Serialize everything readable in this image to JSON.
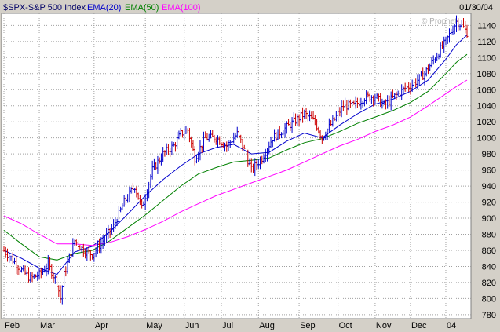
{
  "colors": {
    "background": "#d4d0c8",
    "plot": "#ffffff",
    "grid": "#a0a0a0",
    "up_bar": "#0000cc",
    "down_bar": "#cc0000",
    "ema20": "#0000cc",
    "ema50": "#008000",
    "ema100": "#ff00ff"
  },
  "header": {
    "symbol": "$SPX-S&P 500 Index",
    "date": "01/30/04",
    "watermark": "© Prophet"
  },
  "chart_data": {
    "type": "line",
    "title": "$SPX-S&P 500 Index",
    "ylim": [
      775,
      1155
    ],
    "grid": true,
    "y_ticks": [
      780,
      800,
      820,
      840,
      860,
      880,
      900,
      920,
      940,
      960,
      980,
      1000,
      1020,
      1040,
      1060,
      1080,
      1100,
      1120,
      1140
    ],
    "x_ticks": [
      "Feb",
      "Mar",
      "Apr",
      "May",
      "Jun",
      "Jul",
      "Aug",
      "Sep",
      "Oct",
      "Nov",
      "Dec",
      "04"
    ],
    "x_tick_day": [
      0,
      20,
      51,
      80,
      102,
      123,
      144,
      167,
      189,
      210,
      230,
      250
    ],
    "series": [
      {
        "name": "EMA(20)",
        "color": "#0000cc",
        "x": [
          0,
          10,
          20,
          30,
          40,
          50,
          60,
          70,
          80,
          90,
          100,
          110,
          120,
          130,
          140,
          150,
          160,
          170,
          180,
          190,
          200,
          210,
          220,
          230,
          240,
          250,
          256,
          262
        ],
        "values": [
          860,
          850,
          838,
          830,
          858,
          865,
          883,
          905,
          928,
          948,
          965,
          980,
          988,
          992,
          980,
          982,
          996,
          1006,
          1000,
          1016,
          1030,
          1042,
          1048,
          1058,
          1072,
          1098,
          1116,
          1128
        ]
      },
      {
        "name": "EMA(50)",
        "color": "#008000",
        "x": [
          0,
          10,
          20,
          30,
          40,
          50,
          60,
          70,
          80,
          90,
          100,
          110,
          120,
          130,
          140,
          150,
          160,
          170,
          180,
          190,
          200,
          210,
          220,
          230,
          240,
          250,
          256,
          262
        ],
        "values": [
          885,
          868,
          852,
          848,
          856,
          860,
          872,
          888,
          904,
          922,
          940,
          955,
          963,
          970,
          972,
          975,
          985,
          994,
          999,
          1008,
          1018,
          1026,
          1034,
          1044,
          1058,
          1080,
          1094,
          1104
        ]
      },
      {
        "name": "EMA(100)",
        "color": "#ff00ff",
        "x": [
          0,
          10,
          20,
          30,
          40,
          50,
          60,
          70,
          80,
          90,
          100,
          110,
          120,
          130,
          140,
          150,
          160,
          170,
          180,
          190,
          200,
          210,
          220,
          230,
          240,
          250,
          256,
          262
        ],
        "values": [
          903,
          893,
          880,
          868,
          868,
          866,
          870,
          877,
          886,
          896,
          908,
          918,
          928,
          936,
          944,
          952,
          960,
          970,
          980,
          990,
          998,
          1008,
          1016,
          1026,
          1040,
          1055,
          1064,
          1072
        ]
      }
    ],
    "price": {
      "days": 262,
      "close_anchors": [
        [
          0,
          860
        ],
        [
          5,
          848
        ],
        [
          10,
          835
        ],
        [
          15,
          825
        ],
        [
          20,
          830
        ],
        [
          25,
          842
        ],
        [
          30,
          820
        ],
        [
          32,
          800
        ],
        [
          34,
          830
        ],
        [
          40,
          872
        ],
        [
          45,
          860
        ],
        [
          50,
          855
        ],
        [
          56,
          872
        ],
        [
          62,
          890
        ],
        [
          68,
          920
        ],
        [
          74,
          940
        ],
        [
          78,
          912
        ],
        [
          84,
          960
        ],
        [
          90,
          980
        ],
        [
          96,
          990
        ],
        [
          100,
          1005
        ],
        [
          104,
          1010
        ],
        [
          108,
          975
        ],
        [
          114,
          1000
        ],
        [
          120,
          1000
        ],
        [
          126,
          990
        ],
        [
          132,
          1005
        ],
        [
          136,
          985
        ],
        [
          140,
          960
        ],
        [
          146,
          975
        ],
        [
          152,
          1000
        ],
        [
          158,
          1010
        ],
        [
          164,
          1020
        ],
        [
          170,
          1030
        ],
        [
          176,
          1020
        ],
        [
          180,
          1000
        ],
        [
          186,
          1020
        ],
        [
          192,
          1040
        ],
        [
          198,
          1040
        ],
        [
          204,
          1050
        ],
        [
          210,
          1052
        ],
        [
          215,
          1040
        ],
        [
          220,
          1050
        ],
        [
          226,
          1060
        ],
        [
          232,
          1068
        ],
        [
          238,
          1080
        ],
        [
          244,
          1100
        ],
        [
          250,
          1120
        ],
        [
          256,
          1145
        ],
        [
          259,
          1140
        ],
        [
          262,
          1131
        ]
      ]
    }
  }
}
